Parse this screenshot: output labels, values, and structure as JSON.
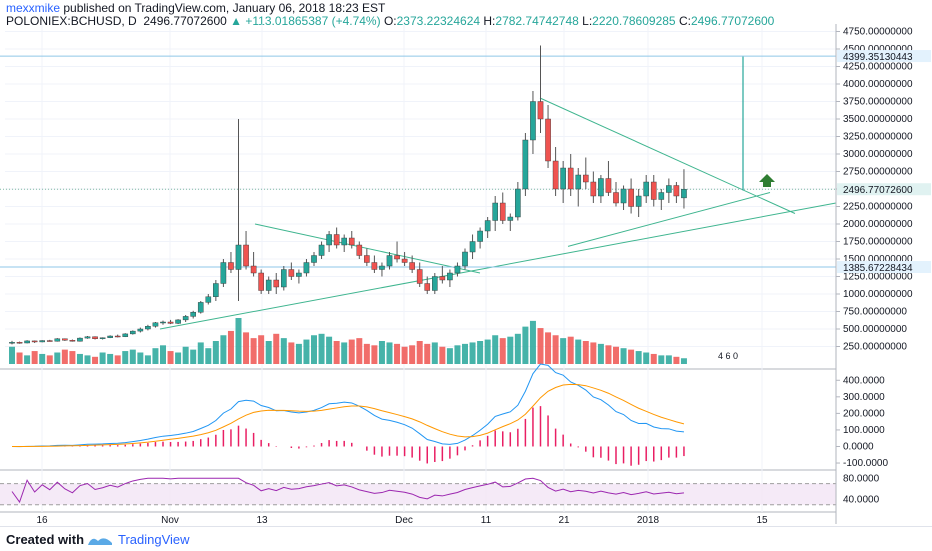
{
  "header": {
    "author": "mexxmike",
    "published": "published on TradingView.com, January 06, 2018 18:23 EST",
    "symbol": "POLONIEX:BCHUSD, D",
    "last": "2496.77072600",
    "change": "+113.01865387 (+4.74%)",
    "o_label": "O:",
    "o": "2373.22324624",
    "h_label": "H:",
    "h": "2782.74742748",
    "l_label": "L:",
    "l": "2220.78609285",
    "c_label": "C:",
    "c": "2496.77072600",
    "up_color": "#26a69a",
    "down_color": "#ef5350"
  },
  "footer": {
    "created_with": "Created with",
    "brand": "TradingView"
  },
  "price_labels": {
    "top_marker": "4399.35130443",
    "current": "2496.77072600",
    "lower_marker": "1385.67228434"
  },
  "volume_badge": "4 6 0",
  "chart_data": [
    {
      "type": "candlestick",
      "title": "POLONIEX:BCHUSD, D",
      "y_ticks": [
        "4750.00000000",
        "4500.00000000",
        "4250.00000000",
        "4000.00000000",
        "3750.00000000",
        "3500.00000000",
        "3250.00000000",
        "3000.00000000",
        "2750.00000000",
        "2500.00000000",
        "2250.00000000",
        "2000.00000000",
        "1750.00000000",
        "1500.00000000",
        "1250.00000000",
        "1000.00000000",
        "750.00000000",
        "500.00000000",
        "250.00000000"
      ],
      "ylim": [
        0,
        4800
      ],
      "x_ticks": [
        "16",
        "Nov",
        "13",
        "Dec",
        "11",
        "21",
        "2018",
        "15"
      ],
      "candles": [
        [
          300,
          330,
          280,
          310
        ],
        [
          310,
          320,
          290,
          300
        ],
        [
          300,
          340,
          295,
          330
        ],
        [
          330,
          335,
          300,
          315
        ],
        [
          315,
          340,
          310,
          335
        ],
        [
          335,
          345,
          320,
          325
        ],
        [
          325,
          370,
          320,
          360
        ],
        [
          360,
          365,
          330,
          340
        ],
        [
          340,
          350,
          320,
          325
        ],
        [
          325,
          380,
          320,
          370
        ],
        [
          370,
          400,
          360,
          390
        ],
        [
          390,
          395,
          350,
          360
        ],
        [
          360,
          380,
          350,
          375
        ],
        [
          375,
          410,
          370,
          400
        ],
        [
          400,
          420,
          380,
          390
        ],
        [
          390,
          440,
          385,
          430
        ],
        [
          430,
          480,
          420,
          470
        ],
        [
          470,
          520,
          450,
          500
        ],
        [
          500,
          560,
          480,
          540
        ],
        [
          540,
          600,
          520,
          590
        ],
        [
          590,
          620,
          560,
          600
        ],
        [
          600,
          630,
          570,
          580
        ],
        [
          580,
          640,
          570,
          630
        ],
        [
          630,
          700,
          600,
          680
        ],
        [
          680,
          760,
          650,
          740
        ],
        [
          740,
          900,
          720,
          880
        ],
        [
          880,
          1000,
          850,
          960
        ],
        [
          960,
          1200,
          900,
          1150
        ],
        [
          1150,
          1500,
          1100,
          1450
        ],
        [
          1450,
          1600,
          1300,
          1350
        ],
        [
          1350,
          3500,
          900,
          1700
        ],
        [
          1700,
          1900,
          1350,
          1400
        ],
        [
          1400,
          1600,
          1250,
          1300
        ],
        [
          1300,
          1350,
          1000,
          1050
        ],
        [
          1050,
          1250,
          1000,
          1200
        ],
        [
          1200,
          1300,
          1000,
          1100
        ],
        [
          1100,
          1400,
          1050,
          1350
        ],
        [
          1350,
          1450,
          1200,
          1250
        ],
        [
          1250,
          1350,
          1150,
          1300
        ],
        [
          1300,
          1500,
          1250,
          1450
        ],
        [
          1450,
          1600,
          1400,
          1550
        ],
        [
          1550,
          1750,
          1500,
          1700
        ],
        [
          1700,
          1900,
          1600,
          1850
        ],
        [
          1850,
          1950,
          1650,
          1700
        ],
        [
          1700,
          1850,
          1600,
          1800
        ],
        [
          1800,
          1900,
          1650,
          1700
        ],
        [
          1700,
          1750,
          1500,
          1550
        ],
        [
          1550,
          1650,
          1400,
          1450
        ],
        [
          1450,
          1550,
          1300,
          1350
        ],
        [
          1350,
          1450,
          1250,
          1400
        ],
        [
          1400,
          1600,
          1350,
          1550
        ],
        [
          1550,
          1750,
          1450,
          1500
        ],
        [
          1500,
          1600,
          1400,
          1450
        ],
        [
          1450,
          1550,
          1300,
          1350
        ],
        [
          1350,
          1450,
          1100,
          1150
        ],
        [
          1150,
          1250,
          1000,
          1050
        ],
        [
          1050,
          1300,
          1000,
          1250
        ],
        [
          1250,
          1400,
          1150,
          1200
        ],
        [
          1200,
          1350,
          1100,
          1300
        ],
        [
          1300,
          1450,
          1250,
          1400
        ],
        [
          1400,
          1650,
          1350,
          1600
        ],
        [
          1600,
          1850,
          1500,
          1750
        ],
        [
          1750,
          1950,
          1650,
          1900
        ],
        [
          1900,
          2100,
          1800,
          2050
        ],
        [
          2050,
          2400,
          1900,
          2300
        ],
        [
          2300,
          2450,
          2000,
          2050
        ],
        [
          2050,
          2150,
          1900,
          2100
        ],
        [
          2100,
          2600,
          2050,
          2500
        ],
        [
          2500,
          3300,
          2400,
          3200
        ],
        [
          3200,
          3900,
          3000,
          3750
        ],
        [
          3750,
          4550,
          3300,
          3500
        ],
        [
          3500,
          3700,
          2800,
          2900
        ],
        [
          2900,
          3100,
          2400,
          2500
        ],
        [
          2500,
          2900,
          2300,
          2800
        ],
        [
          2800,
          3000,
          2400,
          2500
        ],
        [
          2500,
          2800,
          2250,
          2700
        ],
        [
          2700,
          2950,
          2500,
          2600
        ],
        [
          2600,
          2750,
          2300,
          2400
        ],
        [
          2400,
          2700,
          2300,
          2650
        ],
        [
          2650,
          2900,
          2400,
          2450
        ],
        [
          2450,
          2600,
          2250,
          2300
        ],
        [
          2300,
          2550,
          2200,
          2500
        ],
        [
          2500,
          2650,
          2150,
          2250
        ],
        [
          2250,
          2500,
          2100,
          2400
        ],
        [
          2400,
          2700,
          2300,
          2600
        ],
        [
          2600,
          2700,
          2250,
          2350
        ],
        [
          2350,
          2500,
          2200,
          2450
        ],
        [
          2450,
          2650,
          2300,
          2550
        ],
        [
          2550,
          2600,
          2300,
          2400
        ],
        [
          2373,
          2783,
          2221,
          2497
        ]
      ],
      "volume": [
        120,
        80,
        60,
        90,
        70,
        60,
        80,
        100,
        90,
        70,
        60,
        50,
        80,
        70,
        60,
        90,
        100,
        80,
        60,
        110,
        130,
        90,
        80,
        120,
        100,
        150,
        110,
        160,
        200,
        230,
        320,
        220,
        180,
        200,
        160,
        210,
        180,
        150,
        140,
        170,
        200,
        210,
        190,
        160,
        150,
        170,
        180,
        140,
        130,
        160,
        150,
        140,
        120,
        130,
        160,
        140,
        150,
        120,
        110,
        130,
        140,
        150,
        160,
        170,
        200,
        180,
        190,
        210,
        260,
        300,
        250,
        220,
        200,
        180,
        190,
        170,
        160,
        150,
        140,
        130,
        120,
        110,
        100,
        90,
        80,
        70,
        60,
        60,
        50,
        40
      ],
      "rsi_levels": [
        70,
        30
      ],
      "rsi_ticks": [
        "80.0000",
        "40.0000"
      ],
      "macd_ticks": [
        "400.0000",
        "300.0000",
        "200.0000",
        "100.0000",
        "0.0000",
        "-100.0000"
      ]
    }
  ]
}
